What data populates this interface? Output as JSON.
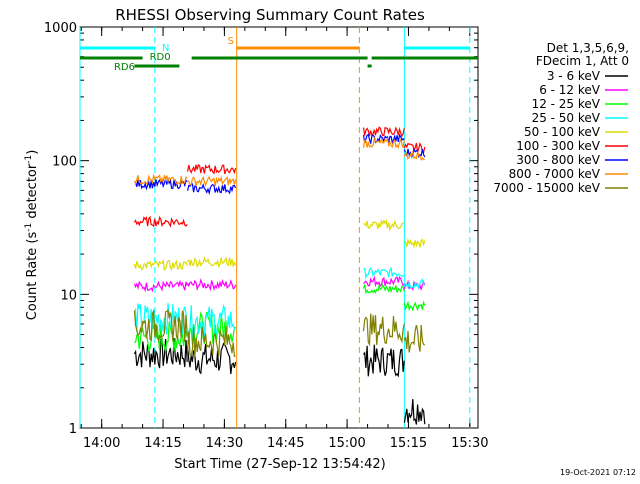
{
  "chart_data": {
    "type": "line",
    "title": "RHESSI Observing Summary Count Rates",
    "xlabel": "Start Time (27-Sep-12 13:54:42)",
    "ylabel_main": "Count Rate (s",
    "ylabel_sup1": "-1",
    "ylabel_mid": " detector",
    "ylabel_sup2": "-1",
    "ylabel_end": ")",
    "y_scale": "log",
    "ylim": [
      1,
      1000
    ],
    "xlim": [
      "13:54:42",
      "15:32:00"
    ],
    "x_ticks": [
      {
        "label": "14:00",
        "t": "14:00"
      },
      {
        "label": "14:15",
        "t": "14:15"
      },
      {
        "label": "14:30",
        "t": "14:30"
      },
      {
        "label": "14:45",
        "t": "14:45"
      },
      {
        "label": "15:00",
        "t": "15:00"
      },
      {
        "label": "15:15",
        "t": "15:15"
      },
      {
        "label": "15:30",
        "t": "15:30"
      }
    ],
    "y_ticks": [
      {
        "label": "1",
        "v": 1
      },
      {
        "label": "10",
        "v": 10
      },
      {
        "label": "100",
        "v": 100
      },
      {
        "label": "1000",
        "v": 1000
      }
    ],
    "legend_header": [
      "Det 1,3,5,6,9,",
      "FDecim 1, Att 0"
    ],
    "legend_placement": "right",
    "series": [
      {
        "name": "3 - 6 keV",
        "color": "#000000",
        "segments": [
          {
            "x0": "14:08",
            "x1": "14:21",
            "v": 3.6
          },
          {
            "x0": "14:21",
            "x1": "14:33",
            "v": 3.3
          },
          {
            "x0": "15:04",
            "x1": "15:14",
            "v": 3.2
          },
          {
            "x0": "15:14",
            "x1": "15:19",
            "v": 1.4
          }
        ]
      },
      {
        "name": "6 - 12 keV",
        "color": "#ff00ff",
        "segments": [
          {
            "x0": "14:08",
            "x1": "14:21",
            "v": 11.5
          },
          {
            "x0": "14:21",
            "x1": "14:33",
            "v": 11.8
          },
          {
            "x0": "15:04",
            "x1": "15:14",
            "v": 12.5
          },
          {
            "x0": "15:14",
            "x1": "15:19",
            "v": 11.5
          }
        ]
      },
      {
        "name": "12 - 25 keV",
        "color": "#00ff00",
        "segments": [
          {
            "x0": "14:08",
            "x1": "14:21",
            "v": 4.8
          },
          {
            "x0": "14:21",
            "x1": "14:33",
            "v": 5.6
          },
          {
            "x0": "15:04",
            "x1": "15:14",
            "v": 11.0
          },
          {
            "x0": "15:14",
            "x1": "15:19",
            "v": 8.3
          }
        ]
      },
      {
        "name": "25 - 50 keV",
        "color": "#00ffff",
        "segments": [
          {
            "x0": "14:08",
            "x1": "14:21",
            "v": 6.6
          },
          {
            "x0": "14:21",
            "x1": "14:33",
            "v": 6.3
          },
          {
            "x0": "15:04",
            "x1": "15:14",
            "v": 14.5
          },
          {
            "x0": "15:14",
            "x1": "15:19",
            "v": 12.0
          }
        ]
      },
      {
        "name": "50 - 100 keV",
        "color": "#dcdc00",
        "segments": [
          {
            "x0": "14:08",
            "x1": "14:21",
            "v": 16.5
          },
          {
            "x0": "14:21",
            "x1": "14:33",
            "v": 17.5
          },
          {
            "x0": "15:04",
            "x1": "15:14",
            "v": 33.0
          },
          {
            "x0": "15:14",
            "x1": "15:19",
            "v": 24.0
          }
        ]
      },
      {
        "name": "100 - 300 keV",
        "color": "#ff0000",
        "segments": [
          {
            "x0": "14:08",
            "x1": "14:21",
            "v": 35.0
          },
          {
            "x0": "14:21",
            "x1": "14:33",
            "v": 86.0
          },
          {
            "x0": "15:04",
            "x1": "15:14",
            "v": 165.0
          },
          {
            "x0": "15:14",
            "x1": "15:19",
            "v": 125.0
          }
        ]
      },
      {
        "name": "300 - 800 keV",
        "color": "#0000ff",
        "segments": [
          {
            "x0": "14:08",
            "x1": "14:21",
            "v": 67.0
          },
          {
            "x0": "14:21",
            "x1": "14:33",
            "v": 62.0
          },
          {
            "x0": "15:04",
            "x1": "15:14",
            "v": 145.0
          },
          {
            "x0": "15:14",
            "x1": "15:19",
            "v": 115.0
          }
        ]
      },
      {
        "name": "800 - 7000 keV",
        "color": "#ff8c00",
        "segments": [
          {
            "x0": "14:08",
            "x1": "14:21",
            "v": 72.0
          },
          {
            "x0": "14:21",
            "x1": "14:33",
            "v": 70.0
          },
          {
            "x0": "15:04",
            "x1": "15:14",
            "v": 135.0
          },
          {
            "x0": "15:14",
            "x1": "15:19",
            "v": 110.0
          }
        ]
      },
      {
        "name": "7000 - 15000 keV",
        "color": "#808000",
        "segments": [
          {
            "x0": "14:08",
            "x1": "14:21",
            "v": 5.8
          },
          {
            "x0": "14:21",
            "x1": "14:33",
            "v": 4.5
          },
          {
            "x0": "15:04",
            "x1": "15:14",
            "v": 5.5
          },
          {
            "x0": "15:14",
            "x1": "15:19",
            "v": 4.5
          }
        ]
      }
    ],
    "flag_bars": [
      {
        "label": "N",
        "color": "#00ffff",
        "level": "top",
        "ranges": [
          [
            "13:54:42",
            "14:13"
          ],
          [
            "15:14",
            "15:30"
          ]
        ]
      },
      {
        "label": "S",
        "color": "#ff8c00",
        "level": "top",
        "ranges": [
          [
            "14:33",
            "15:03"
          ]
        ]
      },
      {
        "label": "",
        "color": "#008000",
        "level": "mid",
        "ranges": [
          [
            "13:54:42",
            "14:10"
          ],
          [
            "14:22",
            "15:05"
          ],
          [
            "15:06",
            "15:32"
          ]
        ]
      },
      {
        "label": "RD0",
        "color": "#008000",
        "level": "mid",
        "ranges": []
      },
      {
        "label": "RD6",
        "color": "#008000",
        "level": "low",
        "ranges": [
          [
            "14:08",
            "14:19"
          ],
          [
            "15:05",
            "15:06"
          ]
        ]
      }
    ],
    "vlines": [
      {
        "t": "13:54:42",
        "color": "#00ffff",
        "dash": false
      },
      {
        "t": "14:13",
        "color": "#00ffff",
        "dash": true
      },
      {
        "t": "14:33",
        "color": "#ff8c00",
        "dash": false
      },
      {
        "t": "15:03",
        "color": "#ff8c00",
        "dash": true
      },
      {
        "t": "15:14",
        "color": "#00ffff",
        "dash": false
      },
      {
        "t": "15:30",
        "color": "#00ffff",
        "dash": true
      }
    ],
    "footer_date": "19-Oct-2021 07:12"
  }
}
